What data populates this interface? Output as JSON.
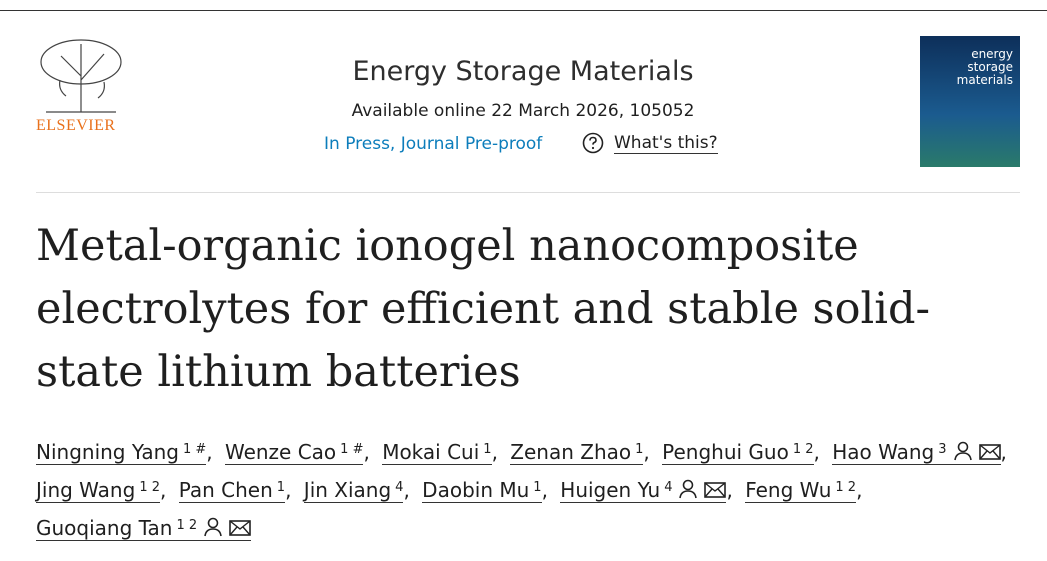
{
  "header": {
    "publisher": "ELSEVIER",
    "journal": "Energy Storage Materials",
    "available": "Available online 22 March 2026, 105052",
    "status": "In Press, Journal Pre-proof",
    "help": "What's this?",
    "cover": [
      "energy",
      "storage",
      "materials"
    ]
  },
  "title": "Metal-organic ionogel nanocomposite electrolytes for efficient and stable solid-state lithium batteries",
  "separator": ",",
  "authors": [
    {
      "name": "Ningning Yang",
      "sup": "1 #",
      "contact": false
    },
    {
      "name": "Wenze Cao",
      "sup": "1 #",
      "contact": false
    },
    {
      "name": "Mokai Cui",
      "sup": "1",
      "contact": false
    },
    {
      "name": "Zenan Zhao",
      "sup": "1",
      "contact": false
    },
    {
      "name": "Penghui Guo",
      "sup": "1 2",
      "contact": false
    },
    {
      "name": "Hao Wang",
      "sup": "3",
      "contact": true
    },
    {
      "name": "Jing Wang",
      "sup": "1 2",
      "contact": false
    },
    {
      "name": "Pan Chen",
      "sup": "1",
      "contact": false
    },
    {
      "name": "Jin Xiang",
      "sup": "4",
      "contact": false
    },
    {
      "name": "Daobin Mu",
      "sup": "1",
      "contact": false
    },
    {
      "name": "Huigen Yu",
      "sup": "4",
      "contact": true
    },
    {
      "name": "Feng Wu",
      "sup": "1 2",
      "contact": false
    },
    {
      "name": "Guoqiang Tan",
      "sup": "1 2",
      "contact": true
    }
  ]
}
